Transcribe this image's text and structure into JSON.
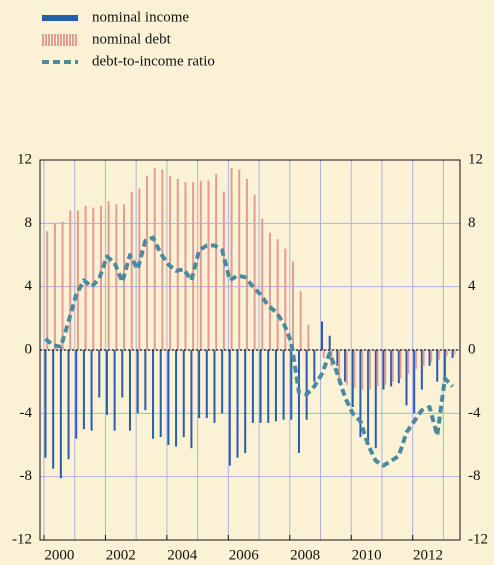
{
  "chart_data": {
    "type": "bar-line",
    "x": [
      2000,
      2000.25,
      2000.5,
      2000.75,
      2001,
      2001.25,
      2001.5,
      2001.75,
      2002,
      2002.25,
      2002.5,
      2002.75,
      2003,
      2003.25,
      2003.5,
      2003.75,
      2004,
      2004.25,
      2004.5,
      2004.75,
      2005,
      2005.25,
      2005.5,
      2005.75,
      2006,
      2006.25,
      2006.5,
      2006.75,
      2007,
      2007.25,
      2007.5,
      2007.75,
      2008,
      2008.25,
      2008.5,
      2008.75,
      2009,
      2009.25,
      2009.5,
      2009.75,
      2010,
      2010.25,
      2010.5,
      2010.75,
      2011,
      2011.25,
      2011.5,
      2011.75,
      2012,
      2012.25,
      2012.5,
      2012.75,
      2013,
      2013.25
    ],
    "series": [
      {
        "name": "nominal income",
        "kind": "bar",
        "color": "#2a5caa",
        "values": [
          -6.8,
          -7.5,
          -8.1,
          -6.9,
          -5.6,
          -5.0,
          -5.1,
          -3.0,
          -4.1,
          -5.1,
          -3.0,
          -5.1,
          -4.0,
          -3.8,
          -5.6,
          -5.5,
          -6.0,
          -6.1,
          -5.5,
          -6.2,
          -4.3,
          -4.3,
          -4.6,
          -4.0,
          -7.3,
          -6.8,
          -6.5,
          -4.6,
          -4.6,
          -4.6,
          -4.5,
          -4.4,
          -4.4,
          -6.5,
          -4.4,
          -2.0,
          1.8,
          0.9,
          -1.0,
          -2.0,
          -3.6,
          -5.5,
          -6.0,
          -6.2,
          -2.5,
          -2.3,
          -2.1,
          -3.5,
          -4.0,
          -2.5,
          -1.0,
          -2.0,
          -2.0,
          -0.5
        ]
      },
      {
        "name": "nominal debt",
        "kind": "bar",
        "color": "#e49b94",
        "values": [
          7.5,
          8.0,
          8.1,
          8.8,
          8.8,
          9.1,
          9.0,
          9.1,
          9.4,
          9.2,
          9.2,
          10.0,
          10.2,
          11.0,
          11.5,
          11.4,
          11.0,
          10.8,
          10.6,
          10.6,
          10.7,
          10.7,
          11.1,
          10.0,
          11.5,
          11.4,
          10.8,
          9.8,
          8.3,
          7.4,
          7.0,
          6.4,
          5.6,
          3.7,
          1.6,
          0,
          -0.5,
          -1.0,
          -2.0,
          -2.2,
          -2.4,
          -2.5,
          -2.5,
          -2.3,
          -2.2,
          -2.0,
          -1.8,
          -1.5,
          -1.2,
          -1.0,
          -0.8,
          -0.6,
          -0.4,
          -0.3
        ]
      },
      {
        "name": "debt-to-income ratio",
        "kind": "line",
        "color": "#4a8aa0",
        "values": [
          0.7,
          0.3,
          0.2,
          1.8,
          3.5,
          4.4,
          4.0,
          4.5,
          5.9,
          5.5,
          4.3,
          6.0,
          5.1,
          6.9,
          7.1,
          6.1,
          5.4,
          5.0,
          5.1,
          4.4,
          6.3,
          6.6,
          6.6,
          6.3,
          4.4,
          4.7,
          4.6,
          4.0,
          3.5,
          2.8,
          2.4,
          1.7,
          0.5,
          -2.7,
          -2.8,
          -2.3,
          -1.5,
          -0.2,
          -1.5,
          -3.0,
          -4.0,
          -4.5,
          -6.0,
          -7.0,
          -7.3,
          -7.0,
          -6.7,
          -5.2,
          -4.5,
          -3.8,
          -3.6,
          -5.4,
          -1.8,
          -2.3
        ]
      }
    ],
    "xlim": [
      1999.87,
      2013.54
    ],
    "xticks": [
      {
        "value": 2000,
        "label": "2000"
      },
      {
        "value": 2002,
        "label": "2002"
      },
      {
        "value": 2004,
        "label": "2004"
      },
      {
        "value": 2006,
        "label": "2006"
      },
      {
        "value": 2008,
        "label": "2008"
      },
      {
        "value": 2010,
        "label": "2010"
      },
      {
        "value": 2012,
        "label": "2012"
      }
    ],
    "ylim": [
      -12,
      12
    ],
    "yticks": [
      -12,
      -8,
      -4,
      0,
      4,
      8,
      12
    ],
    "y2lim": [
      -12,
      12
    ],
    "y2ticks": [
      -12,
      -8,
      -4,
      0,
      4,
      8,
      12
    ],
    "grid": true,
    "legend": "top-left"
  }
}
